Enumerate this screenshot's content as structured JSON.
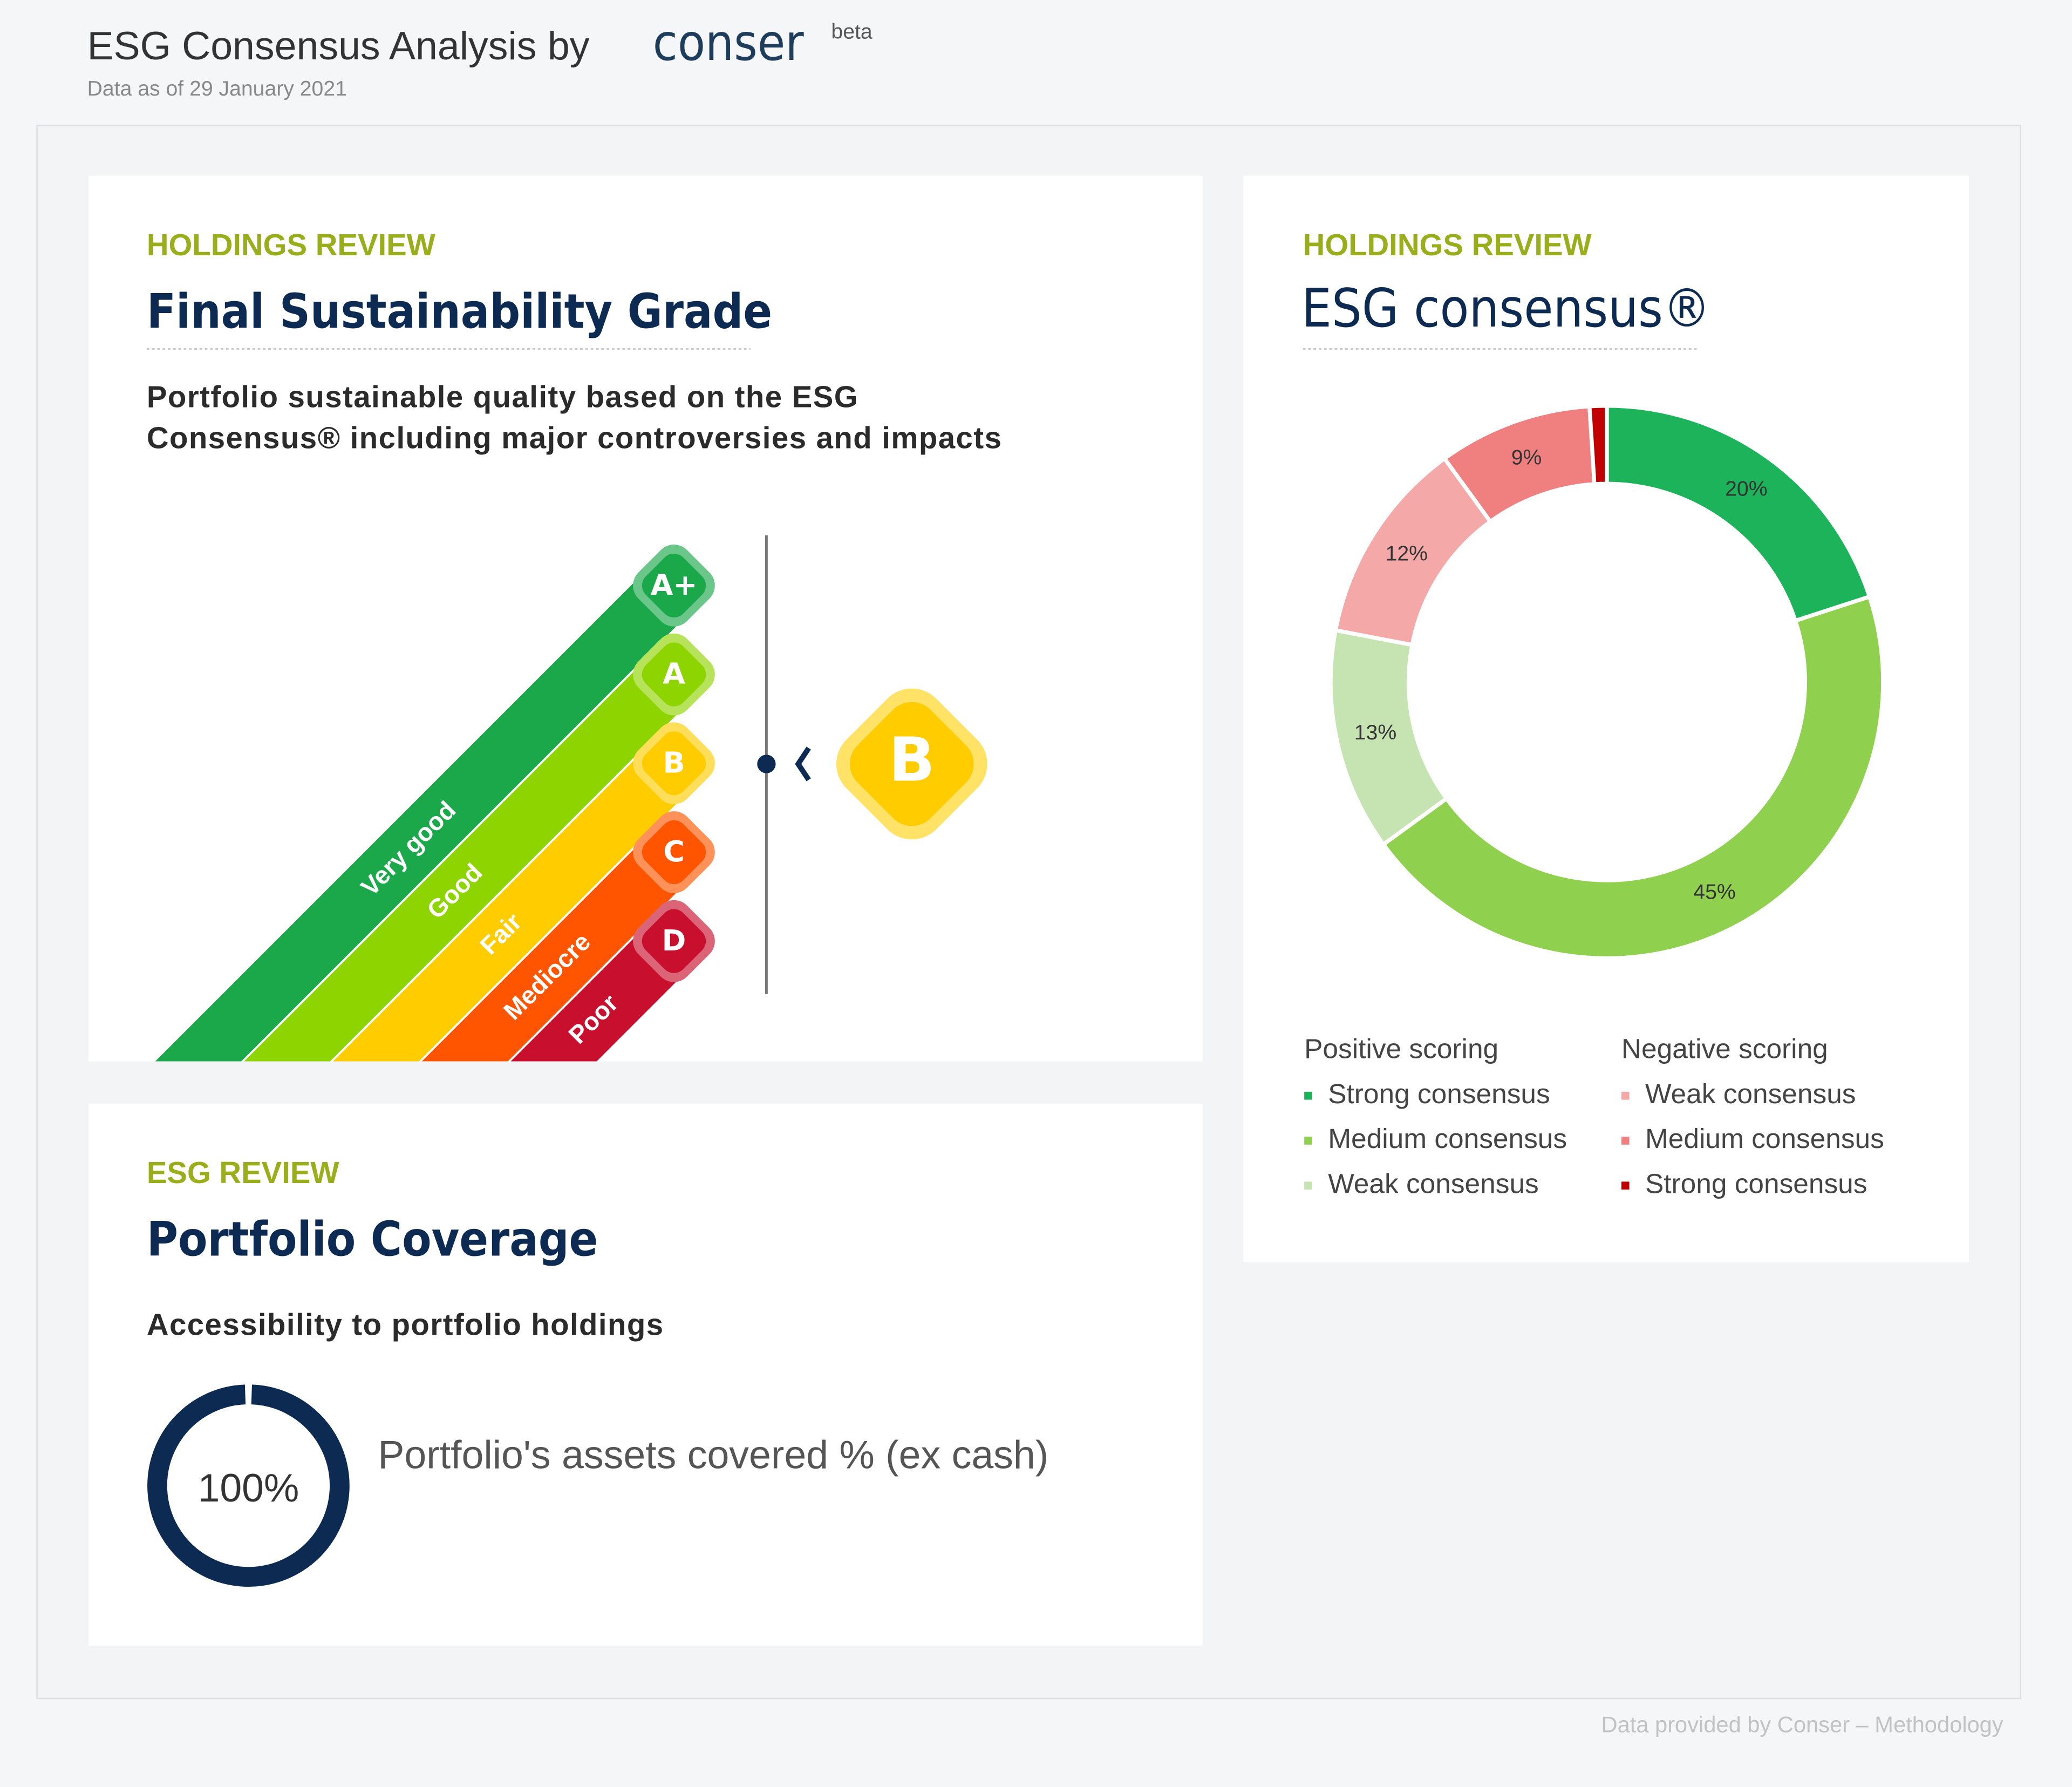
{
  "header": {
    "title": "ESG Consensus Analysis by",
    "brand": "conser",
    "badge": "beta",
    "subtitle": "Data as of 29 January 2021"
  },
  "grade_panel": {
    "kicker": "HOLDINGS REVIEW",
    "title": "Final Sustainability Grade",
    "description": [
      "Portfolio sustainable quality based on the ESG",
      "Consensus® including major controversies and impacts"
    ],
    "grades": [
      {
        "letter": "A+",
        "label": "Very good",
        "color": "#1aa84a"
      },
      {
        "letter": "A",
        "label": "Good",
        "color": "#8ed400"
      },
      {
        "letter": "B",
        "label": "Fair",
        "color": "#ffcc00"
      },
      {
        "letter": "C",
        "label": "Mediocre",
        "color": "#ff5500"
      },
      {
        "letter": "D",
        "label": "Poor",
        "color": "#c8102e"
      }
    ],
    "current_grade": "B"
  },
  "coverage_panel": {
    "kicker": "ESG REVIEW",
    "title": "Portfolio Coverage",
    "description": "Accessibility to portfolio holdings",
    "value": 100,
    "value_label": "100%",
    "caption": "Portfolio's assets covered % (ex cash)"
  },
  "consensus_panel": {
    "kicker": "HOLDINGS REVIEW",
    "title": "ESG consensus®",
    "chart_data": {
      "type": "donut",
      "groups": [
        {
          "title": "Positive scoring",
          "categories": [
            "Strong consensus",
            "Medium consensus",
            "Weak consensus"
          ],
          "values": [
            20,
            45,
            13
          ],
          "value_labels": [
            "20%",
            "45%",
            "13%"
          ],
          "colors": [
            "#1db35b",
            "#8fd14f",
            "#c6e4b2"
          ]
        },
        {
          "title": "Negative scoring",
          "categories": [
            "Weak consensus",
            "Medium consensus",
            "Strong consensus"
          ],
          "values": [
            12,
            9,
            1
          ],
          "value_labels": [
            "12%",
            "9%",
            null
          ],
          "colors": [
            "#f4a9a8",
            "#f08080",
            "#c00000"
          ]
        }
      ]
    }
  },
  "footer": "Data provided by Conser – Methodology"
}
